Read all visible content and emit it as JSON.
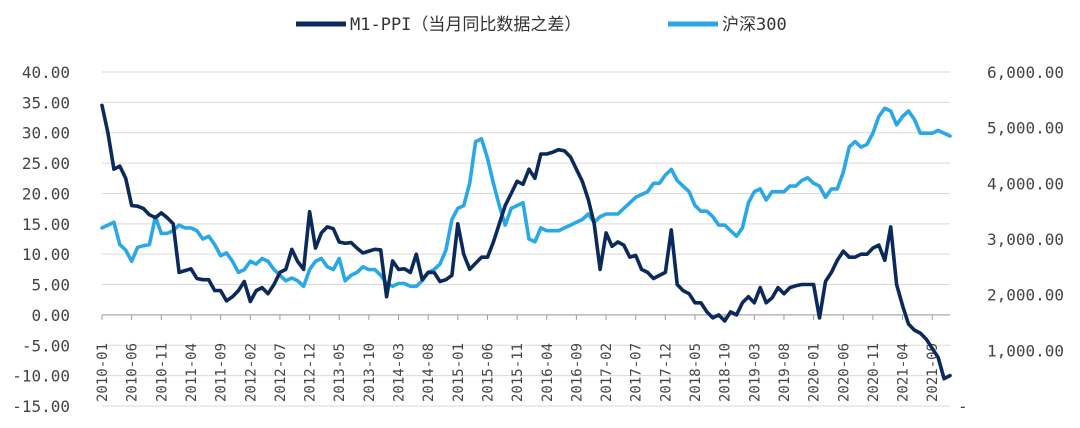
{
  "chart_data": {
    "type": "line",
    "title": "",
    "legend_position": "top-center",
    "x": [
      "2010-01",
      "2010-02",
      "2010-03",
      "2010-04",
      "2010-05",
      "2010-06",
      "2010-07",
      "2010-08",
      "2010-09",
      "2010-10",
      "2010-11",
      "2010-12",
      "2011-01",
      "2011-02",
      "2011-03",
      "2011-04",
      "2011-05",
      "2011-06",
      "2011-07",
      "2011-08",
      "2011-09",
      "2011-10",
      "2011-11",
      "2011-12",
      "2012-01",
      "2012-02",
      "2012-03",
      "2012-04",
      "2012-05",
      "2012-06",
      "2012-07",
      "2012-08",
      "2012-09",
      "2012-10",
      "2012-11",
      "2012-12",
      "2013-01",
      "2013-02",
      "2013-03",
      "2013-04",
      "2013-05",
      "2013-06",
      "2013-07",
      "2013-08",
      "2013-09",
      "2013-10",
      "2013-11",
      "2013-12",
      "2014-01",
      "2014-02",
      "2014-03",
      "2014-04",
      "2014-05",
      "2014-06",
      "2014-07",
      "2014-08",
      "2014-09",
      "2014-10",
      "2014-11",
      "2014-12",
      "2015-01",
      "2015-02",
      "2015-03",
      "2015-04",
      "2015-05",
      "2015-06",
      "2015-07",
      "2015-08",
      "2015-09",
      "2015-10",
      "2015-11",
      "2015-12",
      "2016-01",
      "2016-02",
      "2016-03",
      "2016-04",
      "2016-05",
      "2016-06",
      "2016-07",
      "2016-08",
      "2016-09",
      "2016-10",
      "2016-11",
      "2016-12",
      "2017-01",
      "2017-02",
      "2017-03",
      "2017-04",
      "2017-05",
      "2017-06",
      "2017-07",
      "2017-08",
      "2017-09",
      "2017-10",
      "2017-11",
      "2017-12",
      "2018-01",
      "2018-02",
      "2018-03",
      "2018-04",
      "2018-05",
      "2018-06",
      "2018-07",
      "2018-08",
      "2018-09",
      "2018-10",
      "2018-11",
      "2018-12",
      "2019-01",
      "2019-02",
      "2019-03",
      "2019-04",
      "2019-05",
      "2019-06",
      "2019-07",
      "2019-08",
      "2019-09",
      "2019-10",
      "2019-11",
      "2019-12",
      "2020-01",
      "2020-02",
      "2020-03",
      "2020-04",
      "2020-05",
      "2020-06",
      "2020-07",
      "2020-08",
      "2020-09",
      "2020-10",
      "2020-11",
      "2020-12",
      "2021-01",
      "2021-02",
      "2021-03",
      "2021-04",
      "2021-05",
      "2021-06",
      "2021-07",
      "2021-08",
      "2021-09",
      "2021-10",
      "2021-11",
      "2021-12"
    ],
    "x_tick_labels": [
      "2010-01",
      "2010-06",
      "2010-11",
      "2011-04",
      "2011-09",
      "2012-02",
      "2012-07",
      "2012-12",
      "2013-05",
      "2013-10",
      "2014-03",
      "2014-08",
      "2015-01",
      "2015-06",
      "2015-11",
      "2016-04",
      "2016-09",
      "2017-02",
      "2017-07",
      "2017-12",
      "2018-05",
      "2018-10",
      "2019-03",
      "2019-08",
      "2020-01",
      "2020-06",
      "2020-11",
      "2021-04",
      "2021-09"
    ],
    "y_left": {
      "ylim": [
        -15,
        40
      ],
      "tick_labels": [
        "40.00",
        "35.00",
        "30.00",
        "25.00",
        "20.00",
        "15.00",
        "10.00",
        "5.00",
        "0.00",
        "-5.00",
        "-10.00",
        "-15.00"
      ]
    },
    "y_right": {
      "ylim": [
        0,
        6000
      ],
      "tick_labels": [
        "6,000.00",
        "5,000.00",
        "4,000.00",
        "3,000.00",
        "2,000.00",
        "1,000.00",
        "-"
      ]
    },
    "series": [
      {
        "name": "M1-PPI（当月同比数据之差）",
        "axis": "left",
        "color": "#0b2a5b",
        "values": [
          34.5,
          30,
          24,
          24.5,
          22.5,
          18,
          17.9,
          17.5,
          16.5,
          16,
          16.8,
          16,
          15,
          7,
          7.3,
          7.6,
          6,
          5.8,
          5.8,
          4,
          4,
          2.3,
          3,
          4,
          5.5,
          2.2,
          4,
          4.5,
          3.5,
          5,
          7,
          7.5,
          10.8,
          8.8,
          7.5,
          17,
          11,
          13.5,
          14.5,
          14.2,
          12,
          11.8,
          11.9,
          11,
          10.2,
          10.5,
          10.8,
          10.7,
          3,
          8.9,
          7.5,
          7.6,
          7,
          10,
          5.8,
          7,
          7,
          5.5,
          5.8,
          6.5,
          15,
          10,
          7.5,
          8.5,
          9.5,
          9.5,
          12,
          15,
          18,
          20,
          22,
          21.5,
          24,
          22.5,
          26.5,
          26.5,
          26.8,
          27.2,
          27,
          26,
          24,
          22,
          19,
          15,
          7.5,
          13.5,
          11.3,
          12,
          11.5,
          9.5,
          9.8,
          7.5,
          7,
          6,
          6.5,
          7,
          14,
          5,
          4,
          3.5,
          2,
          2,
          0.5,
          -0.5,
          0,
          -1,
          0.5,
          0,
          2,
          3,
          2,
          4.5,
          2,
          2.8,
          4.5,
          3.5,
          4.5,
          4.8,
          5,
          5,
          5,
          -0.5,
          5.5,
          7,
          9,
          10.5,
          9.5,
          9.5,
          10,
          10,
          11,
          11.5,
          9,
          14.5,
          5,
          1.5,
          -1.5,
          -2.5,
          -3,
          -4,
          -5.5,
          -7,
          -10.5,
          -10
        ]
      },
      {
        "name": "沪深300",
        "axis": "right",
        "color": "#29a7e6",
        "values": [
          3200,
          3250,
          3300,
          2900,
          2800,
          2600,
          2850,
          2880,
          2900,
          3400,
          3100,
          3100,
          3150,
          3250,
          3200,
          3200,
          3150,
          3000,
          3050,
          2900,
          2700,
          2750,
          2600,
          2400,
          2450,
          2600,
          2550,
          2650,
          2600,
          2450,
          2350,
          2250,
          2300,
          2250,
          2150,
          2450,
          2600,
          2650,
          2500,
          2450,
          2650,
          2250,
          2350,
          2400,
          2500,
          2450,
          2450,
          2350,
          2200,
          2150,
          2200,
          2200,
          2150,
          2150,
          2250,
          2400,
          2450,
          2550,
          2800,
          3350,
          3550,
          3600,
          4000,
          4750,
          4800,
          4450,
          4000,
          3600,
          3250,
          3550,
          3600,
          3650,
          3000,
          2950,
          3200,
          3150,
          3150,
          3150,
          3200,
          3250,
          3300,
          3350,
          3450,
          3300,
          3400,
          3450,
          3450,
          3450,
          3550,
          3650,
          3750,
          3800,
          3850,
          4000,
          4000,
          4150,
          4250,
          4050,
          3950,
          3850,
          3600,
          3500,
          3500,
          3400,
          3250,
          3250,
          3150,
          3050,
          3200,
          3650,
          3850,
          3900,
          3700,
          3850,
          3850,
          3850,
          3950,
          3950,
          4050,
          4100,
          4000,
          3950,
          3750,
          3900,
          3900,
          4200,
          4650,
          4750,
          4650,
          4700,
          4900,
          5200,
          5350,
          5300,
          5050,
          5200,
          5300,
          5150,
          4900,
          4900,
          4900,
          4950,
          4900,
          4850
        ]
      }
    ],
    "grid": true
  },
  "legend": {
    "m1_label": "M1-PPI（当月同比数据之差）",
    "hs_label": "沪深300"
  }
}
